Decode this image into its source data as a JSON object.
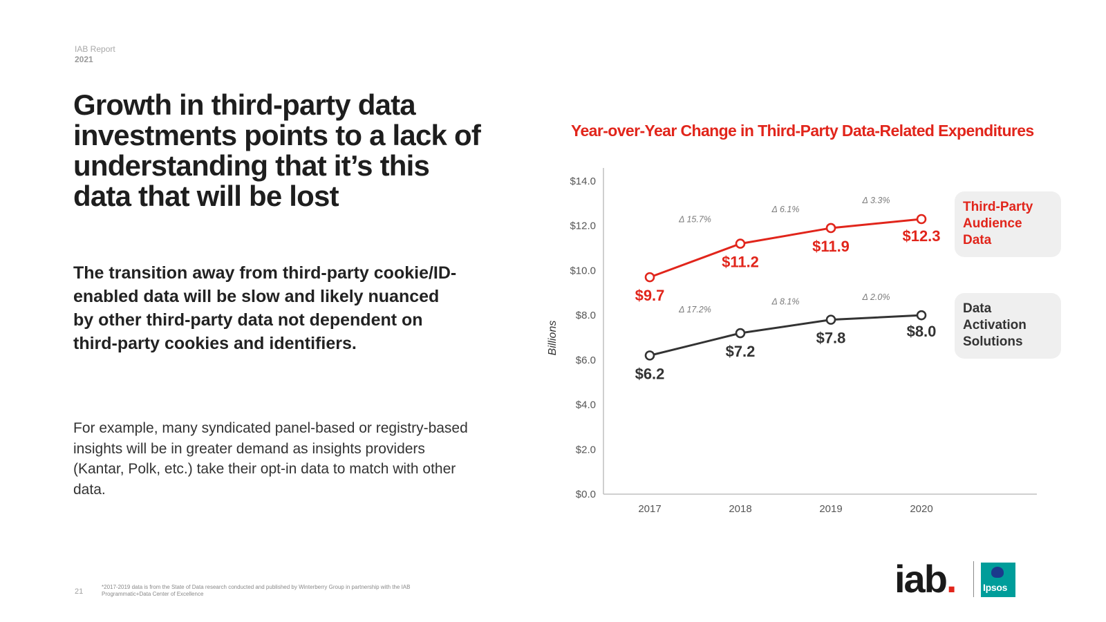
{
  "report": {
    "label": "IAB Report",
    "year": "2021"
  },
  "headline": "Growth in third-party data investments points to a lack of understanding that it’s this data that will be lost",
  "subhead": "The transition away from third-party cookie/ID-enabled data will be slow and likely nuanced by other third-party data not dependent on third-party cookies and identifiers.",
  "body": "For example, many syndicated panel-based or registry-based insights will be in greater demand as insights providers (Kantar, Polk, etc.) take their opt-in data to match with other data.",
  "page_number": "21",
  "footnote": "*2017-2019 data is from the State of Data research conducted and published by Winterberry Group in partnership with the IAB Programmatic+Data Center of Excellence",
  "logos": {
    "iab": "iab",
    "iab_dot": ".",
    "ipsos": "Ipsos"
  },
  "colors": {
    "red": "#e1251b",
    "dark": "#333333",
    "axis": "#bfbfbf",
    "legend_bg": "#efefef"
  },
  "chart_data": {
    "type": "line",
    "title": "Year-over-Year Change in Third-Party Data-Related Expenditures",
    "xlabel": "",
    "ylabel": "Billions",
    "ylim": [
      0,
      14
    ],
    "y_ticks": [
      "$0.0",
      "$2.0",
      "$4.0",
      "$6.0",
      "$8.0",
      "$10.0",
      "$12.0",
      "$14.0"
    ],
    "categories": [
      "2017",
      "2018",
      "2019",
      "2020"
    ],
    "series": [
      {
        "name": "Third-Party Audience Data",
        "values": [
          9.7,
          11.2,
          11.9,
          12.3
        ],
        "labels": [
          "$9.7",
          "$11.2",
          "$11.9",
          "$12.3"
        ],
        "changes": [
          "Δ 15.7%",
          "Δ 6.1%",
          "Δ 3.3%"
        ],
        "color": "#e1251b"
      },
      {
        "name": "Data Activation Solutions",
        "values": [
          6.2,
          7.2,
          7.8,
          8.0
        ],
        "labels": [
          "$6.2",
          "$7.2",
          "$7.8",
          "$8.0"
        ],
        "changes": [
          "Δ 17.2%",
          "Δ 8.1%",
          "Δ 2.0%"
        ],
        "color": "#333333"
      }
    ],
    "grid": false,
    "legend": "right"
  }
}
